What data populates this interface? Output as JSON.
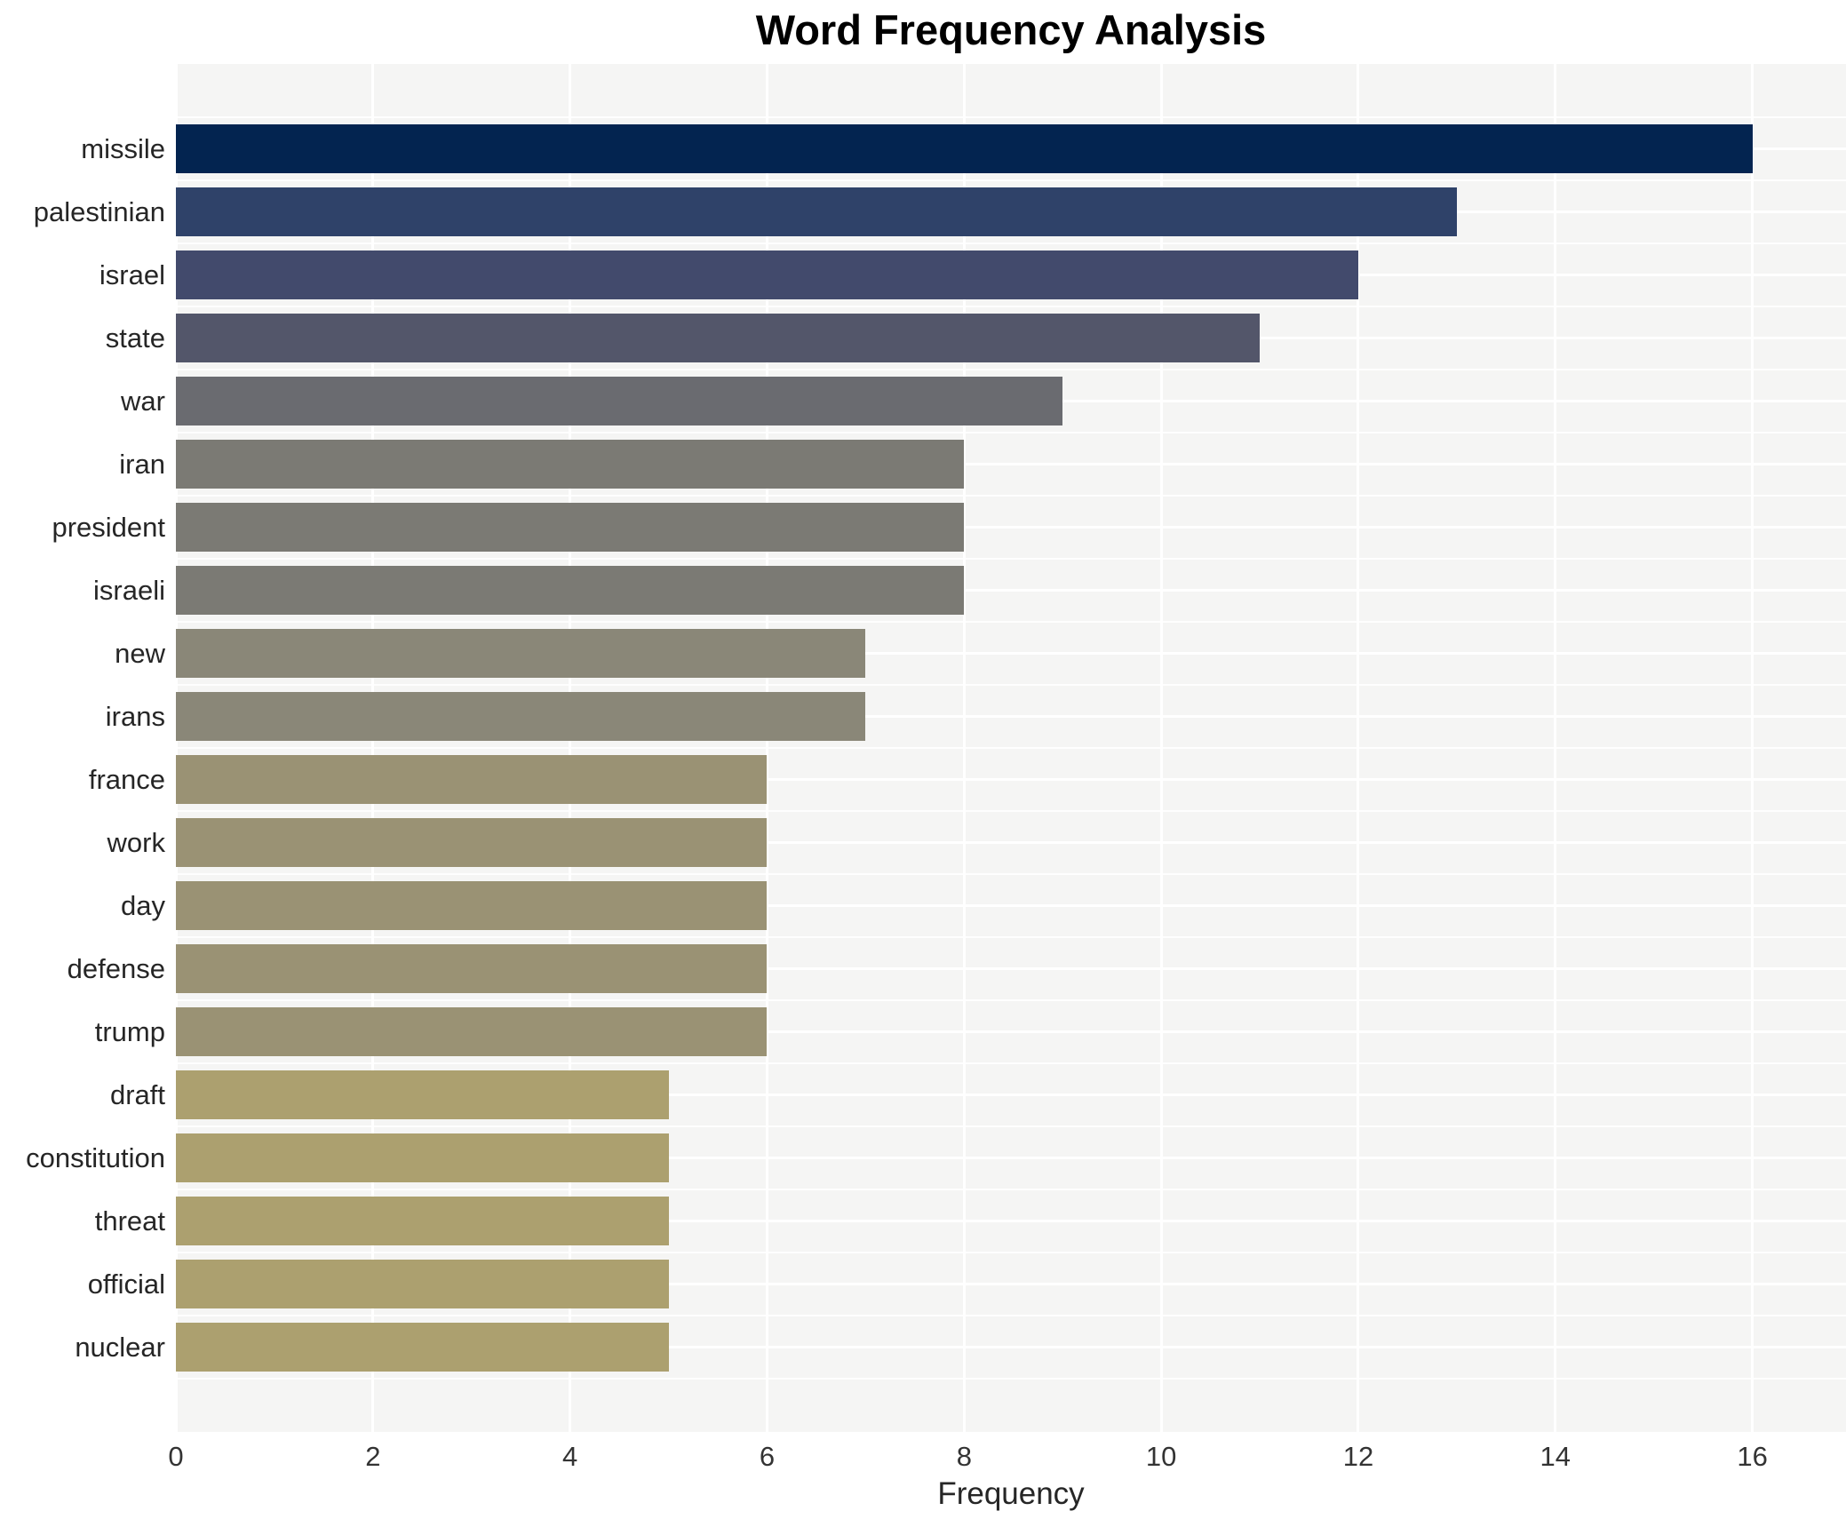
{
  "chart_data": {
    "type": "bar",
    "orientation": "horizontal",
    "title": "Word Frequency Analysis",
    "xlabel": "Frequency",
    "ylabel": "",
    "categories": [
      "missile",
      "palestinian",
      "israel",
      "state",
      "war",
      "iran",
      "president",
      "israeli",
      "new",
      "irans",
      "france",
      "work",
      "day",
      "defense",
      "trump",
      "draft",
      "constitution",
      "threat",
      "official",
      "nuclear"
    ],
    "values": [
      16,
      13,
      12,
      11,
      9,
      8,
      8,
      8,
      7,
      7,
      6,
      6,
      6,
      6,
      6,
      5,
      5,
      5,
      5,
      5
    ],
    "bar_colors": [
      "#032450",
      "#2f4269",
      "#424a6c",
      "#53566a",
      "#6a6b70",
      "#7b7a74",
      "#7b7a74",
      "#7b7a74",
      "#8a8778",
      "#8a8778",
      "#9a9274",
      "#9a9274",
      "#9a9274",
      "#9a9274",
      "#9a9274",
      "#aca06f",
      "#aca06f",
      "#aca06f",
      "#aca06f",
      "#aca06f"
    ],
    "x_ticks": [
      0,
      2,
      4,
      6,
      8,
      10,
      12,
      14,
      16
    ],
    "xlim": [
      0,
      16.95
    ],
    "grid": "white gridlines on light gray panel",
    "legend": null,
    "plot_bg": "#f5f5f4",
    "page_bg": "#ffffff",
    "axis_text_color": "#333333",
    "label_text_color": "#262626"
  }
}
